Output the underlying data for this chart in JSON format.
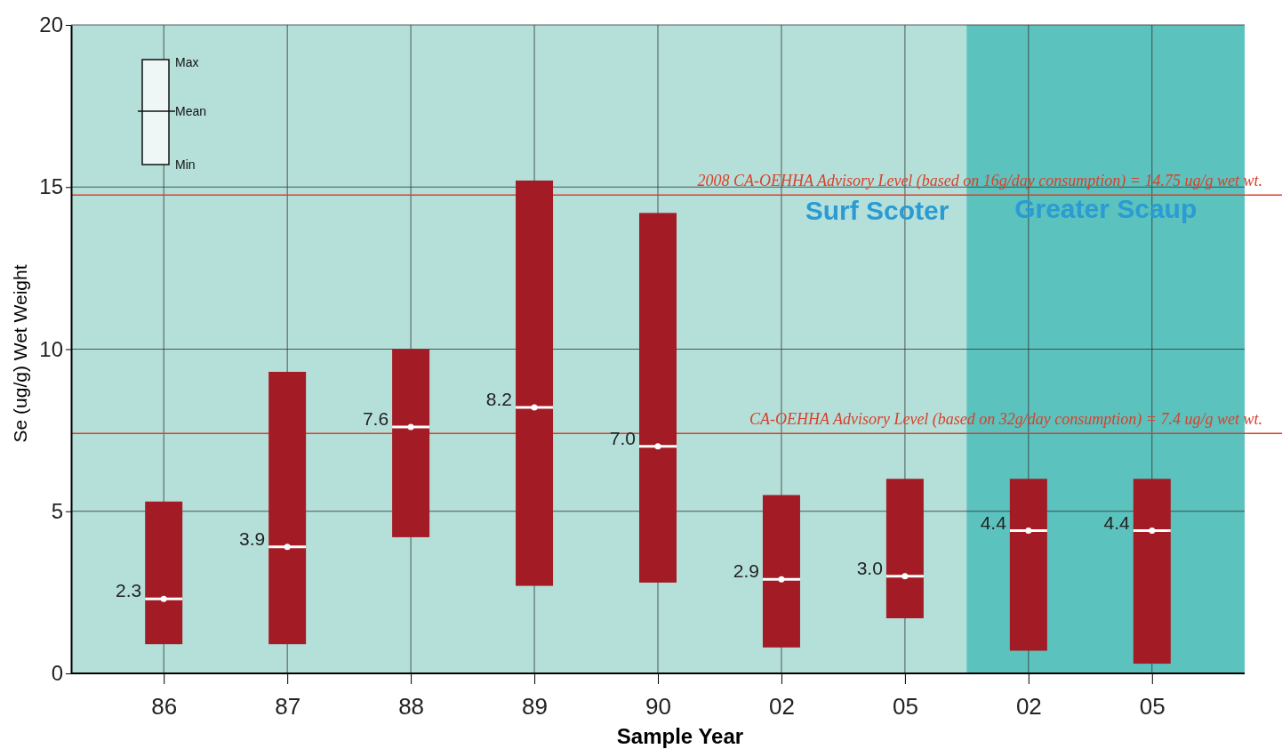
{
  "chart_data": {
    "type": "bar",
    "xlabel": "Sample Year",
    "ylabel": "Se (ug/g) Wet Weight",
    "categories": [
      "86",
      "87",
      "88",
      "89",
      "90",
      "02",
      "05",
      "02",
      "05"
    ],
    "series": [
      {
        "color": "#a31b24",
        "base": [
          0.9,
          0.9,
          4.2,
          2.7,
          2.8,
          0.8,
          1.7,
          0.7,
          0.3
        ],
        "values": [
          4.4,
          8.4,
          5.8,
          12.5,
          11.4,
          4.7,
          4.3,
          5.3,
          5.7
        ]
      },
      {
        "type": "scatter",
        "color": "#ffffff",
        "values": [
          2.3,
          3.9,
          7.6,
          8.2,
          7.0,
          2.9,
          3.0,
          4.4,
          4.4
        ],
        "value_labels": [
          "2.3",
          "3.9",
          "7.6",
          "8.2",
          "7.0",
          "2.9",
          "3.0",
          "4.4",
          "4.4"
        ]
      }
    ],
    "ylim": [
      0,
      20
    ],
    "yticks": [
      0,
      5,
      10,
      15,
      20
    ],
    "grid": true,
    "ref_lines": [
      {
        "axis": "y",
        "value": 14.75,
        "label": "2008 CA-OEHHA Advisory Level (based on 16g/day consumption) = 14.75 ug/g wet wt.",
        "color": "#d9402c"
      },
      {
        "axis": "y",
        "value": 7.4,
        "label": "CA-OEHHA Advisory Level (based on 32g/day consumption) = 7.4 ug/g wet wt.",
        "color": "#d9402c"
      }
    ],
    "annotations": [
      "Surf Scoter",
      "Greater Scaup",
      "Max",
      "Mean",
      "Min"
    ]
  }
}
